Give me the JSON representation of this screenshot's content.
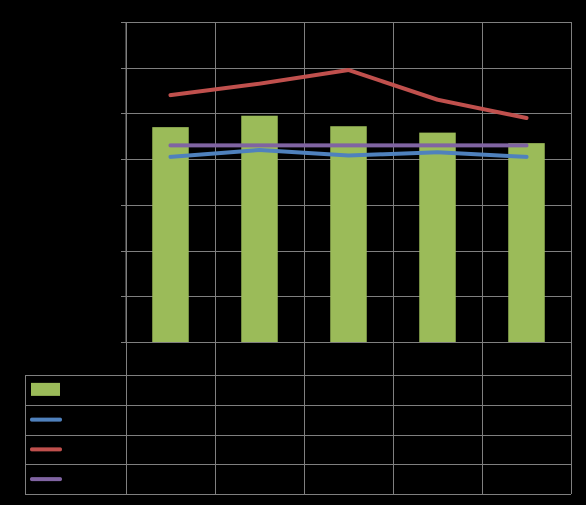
{
  "chart_data": {
    "type": "bar",
    "title": "",
    "xlabel": "",
    "ylabel": "",
    "categories": [
      "",
      "",
      "",
      "",
      ""
    ],
    "ylim": [
      0,
      7
    ],
    "y_ticks": [
      0,
      1,
      2,
      3,
      4,
      5,
      6,
      7
    ],
    "grid": true,
    "legend_placement": "data-table-below",
    "series": [
      {
        "type": "bar",
        "color": "#9BBB59",
        "values": [
          4.7,
          4.95,
          4.72,
          4.58,
          4.35
        ]
      },
      {
        "type": "line",
        "color": "#4F81BD",
        "values": [
          4.05,
          4.2,
          4.08,
          4.15,
          4.05
        ]
      },
      {
        "type": "line",
        "color": "#C0504D",
        "values": [
          5.4,
          5.65,
          5.95,
          5.3,
          4.9
        ]
      },
      {
        "type": "line",
        "color": "#8064A2",
        "values": [
          4.3,
          4.3,
          4.3,
          4.3,
          4.3
        ]
      }
    ]
  }
}
